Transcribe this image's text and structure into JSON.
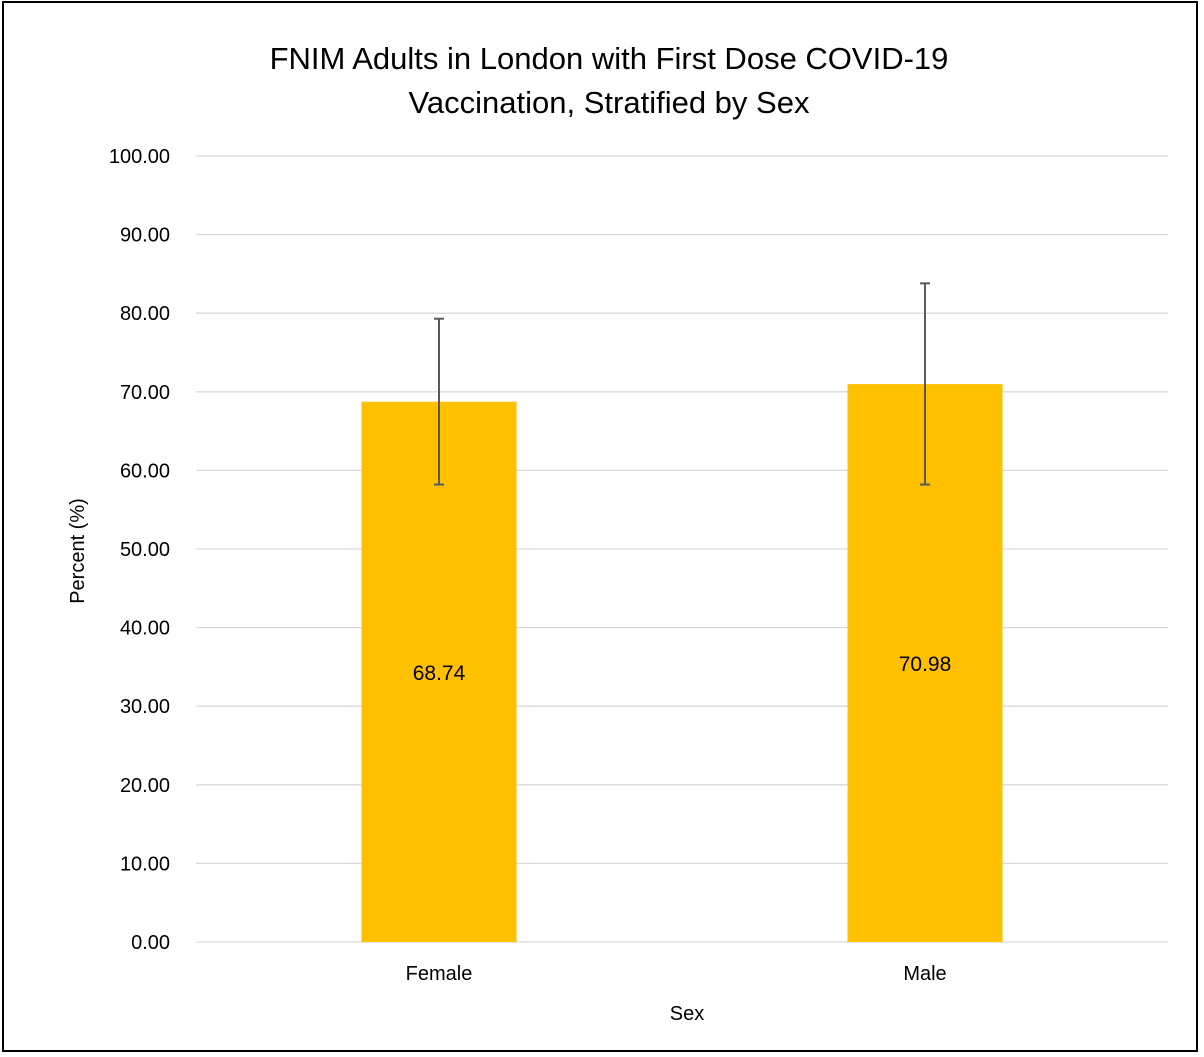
{
  "chart_data": {
    "type": "bar",
    "title_lines": [
      "FNIM Adults in London with First Dose COVID-19",
      "Vaccination, Stratified by Sex"
    ],
    "xlabel": "Sex",
    "ylabel": "Percent (%)",
    "categories": [
      "Female",
      "Male"
    ],
    "values": [
      68.74,
      70.98
    ],
    "value_labels": [
      "68.74",
      "70.98"
    ],
    "error_bars": [
      {
        "low": 58.2,
        "high": 79.3
      },
      {
        "low": 58.2,
        "high": 83.8
      }
    ],
    "ylim": [
      0,
      100
    ],
    "yticks": [
      0,
      10,
      20,
      30,
      40,
      50,
      60,
      70,
      80,
      90,
      100
    ],
    "ytick_labels": [
      "0.00",
      "10.00",
      "20.00",
      "30.00",
      "40.00",
      "50.00",
      "60.00",
      "70.00",
      "80.00",
      "90.00",
      "100.00"
    ],
    "grid": true,
    "legend": "none",
    "colors": {
      "bar": "#FFC000",
      "gridline": "#D9D9D9",
      "error_bar": "#595959",
      "frame": "#000000"
    }
  }
}
